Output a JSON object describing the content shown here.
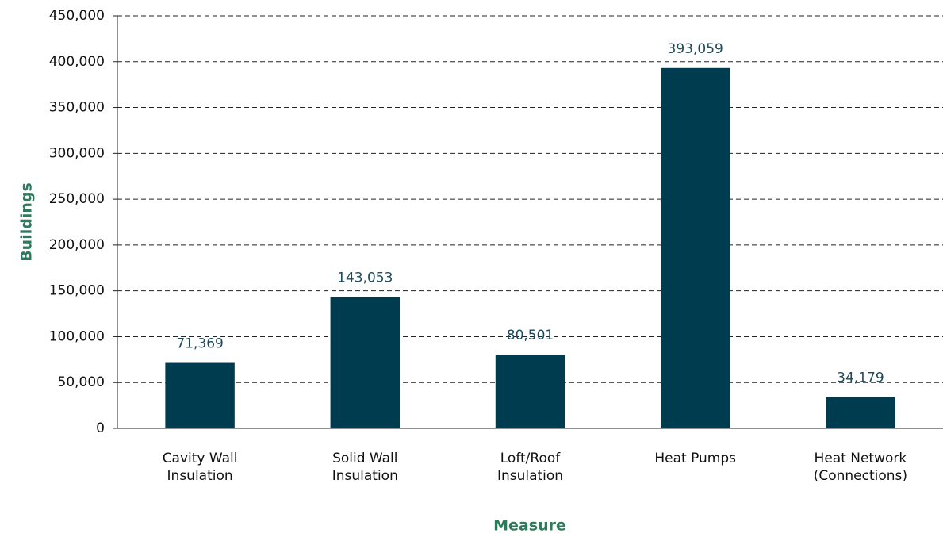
{
  "chart_data": {
    "type": "bar",
    "x_label": "Measure",
    "y_label": "Buildings",
    "categories": [
      "Cavity Wall Insulation",
      "Solid Wall Insulation",
      "Loft/Roof Insulation",
      "Heat Pumps",
      "Heat Network (Connections)"
    ],
    "values": [
      71369,
      143053,
      80501,
      393059,
      34179
    ],
    "value_labels": [
      "71,369",
      "143,053",
      "80,501",
      "393,059",
      "34,179"
    ],
    "color": "#003c50",
    "ylim": [
      0,
      450000
    ],
    "yticks": [
      0,
      {
        "value": 50000,
        "label": "50,000"
      },
      {
        "value": 100000,
        "label": "100,000"
      },
      {
        "value": 150000,
        "label": "150,000"
      },
      {
        "value": 200000,
        "label": "200,000"
      },
      {
        "value": 250000,
        "label": "250,000"
      },
      {
        "value": 300000,
        "label": "300,000"
      },
      {
        "value": 350000,
        "label": "350,000"
      },
      {
        "value": 400000,
        "label": "400,000"
      },
      {
        "value": 450000,
        "label": "450,000"
      }
    ],
    "grid": true
  }
}
